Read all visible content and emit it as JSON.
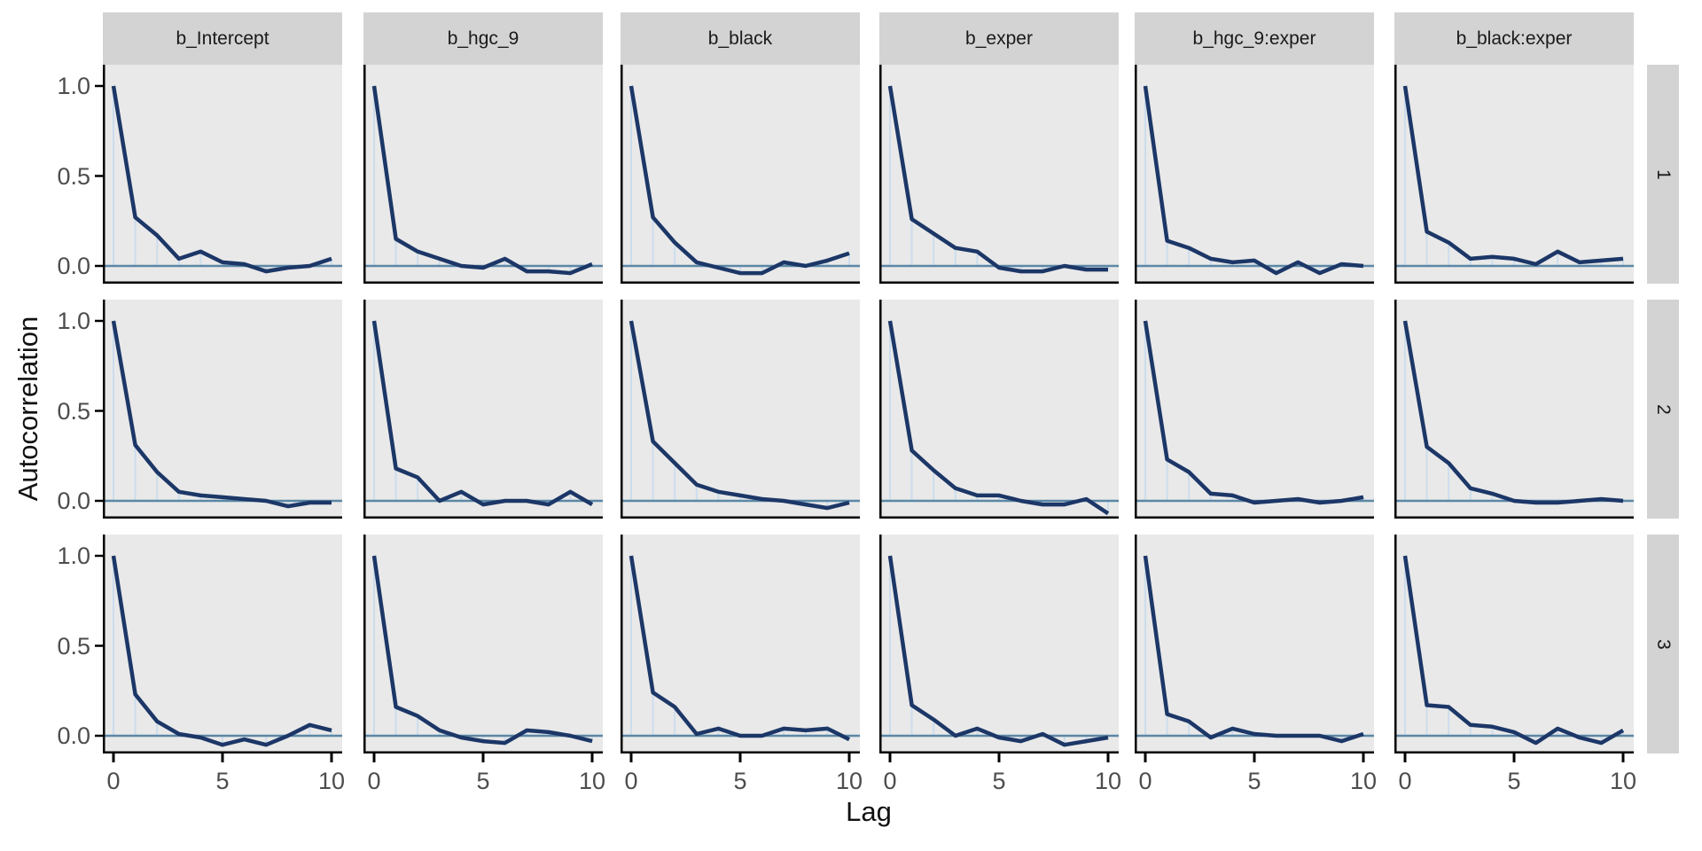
{
  "figure": {
    "x_axis_title": "Lag",
    "y_axis_title": "Autocorrelation",
    "y_tick_labels": [
      "1.0",
      "0.5",
      "0.0"
    ],
    "y_tick_values": [
      1.0,
      0.5,
      0.0
    ],
    "x_tick_labels": [
      "0",
      "5",
      "10"
    ],
    "x_tick_values": [
      0,
      5,
      10
    ],
    "column_strip_labels": [
      "b_Intercept",
      "b_hgc_9",
      "b_black",
      "b_exper",
      "b_hgc_9:exper",
      "b_black:exper"
    ],
    "row_strip_labels": [
      "1",
      "2",
      "3"
    ],
    "colors": {
      "panel_background": "#e9e9e9",
      "strip_background": "#d3d3d3",
      "acf_line": "#1c3767",
      "lag_segment": "#ccdded",
      "zero_line": "#5b87a6",
      "axis_line": "#000000",
      "tick_label": "#4d4d4d",
      "title_text": "#111111"
    }
  },
  "chart_data": {
    "type": "line",
    "title": "",
    "xlabel": "Lag",
    "ylabel": "Autocorrelation",
    "x": [
      0,
      1,
      2,
      3,
      4,
      5,
      6,
      7,
      8,
      9,
      10
    ],
    "xlim": [
      0,
      10
    ],
    "ylim": [
      -0.1,
      1.12
    ],
    "grid": false,
    "legend": false,
    "facet_columns": [
      "b_Intercept",
      "b_hgc_9",
      "b_black",
      "b_exper",
      "b_hgc_9:exper",
      "b_black:exper"
    ],
    "facet_rows": [
      "1",
      "2",
      "3"
    ],
    "series": [
      {
        "parameter": "b_Intercept",
        "chain": "1",
        "values": [
          1.0,
          0.27,
          0.17,
          0.04,
          0.08,
          0.02,
          0.01,
          -0.03,
          -0.01,
          0.0,
          0.04
        ]
      },
      {
        "parameter": "b_hgc_9",
        "chain": "1",
        "values": [
          1.0,
          0.15,
          0.08,
          0.04,
          0.0,
          -0.01,
          0.04,
          -0.03,
          -0.03,
          -0.04,
          0.01
        ]
      },
      {
        "parameter": "b_black",
        "chain": "1",
        "values": [
          1.0,
          0.27,
          0.13,
          0.02,
          -0.01,
          -0.04,
          -0.04,
          0.02,
          0.0,
          0.03,
          0.07
        ]
      },
      {
        "parameter": "b_exper",
        "chain": "1",
        "values": [
          1.0,
          0.26,
          0.18,
          0.1,
          0.08,
          -0.01,
          -0.03,
          -0.03,
          0.0,
          -0.02,
          -0.02
        ]
      },
      {
        "parameter": "b_hgc_9:exper",
        "chain": "1",
        "values": [
          1.0,
          0.14,
          0.1,
          0.04,
          0.02,
          0.03,
          -0.04,
          0.02,
          -0.04,
          0.01,
          0.0
        ]
      },
      {
        "parameter": "b_black:exper",
        "chain": "1",
        "values": [
          1.0,
          0.19,
          0.13,
          0.04,
          0.05,
          0.04,
          0.01,
          0.08,
          0.02,
          0.03,
          0.04
        ]
      },
      {
        "parameter": "b_Intercept",
        "chain": "2",
        "values": [
          1.0,
          0.31,
          0.16,
          0.05,
          0.03,
          0.02,
          0.01,
          0.0,
          -0.03,
          -0.01,
          -0.01
        ]
      },
      {
        "parameter": "b_hgc_9",
        "chain": "2",
        "values": [
          1.0,
          0.18,
          0.13,
          0.0,
          0.05,
          -0.02,
          0.0,
          0.0,
          -0.02,
          0.05,
          -0.02
        ]
      },
      {
        "parameter": "b_black",
        "chain": "2",
        "values": [
          1.0,
          0.33,
          0.21,
          0.09,
          0.05,
          0.03,
          0.01,
          0.0,
          -0.02,
          -0.04,
          -0.01
        ]
      },
      {
        "parameter": "b_exper",
        "chain": "2",
        "values": [
          1.0,
          0.28,
          0.17,
          0.07,
          0.03,
          0.03,
          0.0,
          -0.02,
          -0.02,
          0.01,
          -0.07
        ]
      },
      {
        "parameter": "b_hgc_9:exper",
        "chain": "2",
        "values": [
          1.0,
          0.23,
          0.16,
          0.04,
          0.03,
          -0.01,
          0.0,
          0.01,
          -0.01,
          0.0,
          0.02
        ]
      },
      {
        "parameter": "b_black:exper",
        "chain": "2",
        "values": [
          1.0,
          0.3,
          0.21,
          0.07,
          0.04,
          0.0,
          -0.01,
          -0.01,
          0.0,
          0.01,
          0.0
        ]
      },
      {
        "parameter": "b_Intercept",
        "chain": "3",
        "values": [
          1.0,
          0.23,
          0.08,
          0.01,
          -0.01,
          -0.05,
          -0.02,
          -0.05,
          0.0,
          0.06,
          0.03
        ]
      },
      {
        "parameter": "b_hgc_9",
        "chain": "3",
        "values": [
          1.0,
          0.16,
          0.11,
          0.03,
          -0.01,
          -0.03,
          -0.04,
          0.03,
          0.02,
          0.0,
          -0.03
        ]
      },
      {
        "parameter": "b_black",
        "chain": "3",
        "values": [
          1.0,
          0.24,
          0.16,
          0.01,
          0.04,
          0.0,
          0.0,
          0.04,
          0.03,
          0.04,
          -0.02
        ]
      },
      {
        "parameter": "b_exper",
        "chain": "3",
        "values": [
          1.0,
          0.17,
          0.09,
          0.0,
          0.04,
          -0.01,
          -0.03,
          0.01,
          -0.05,
          -0.03,
          -0.01
        ]
      },
      {
        "parameter": "b_hgc_9:exper",
        "chain": "3",
        "values": [
          1.0,
          0.12,
          0.08,
          -0.01,
          0.04,
          0.01,
          0.0,
          0.0,
          0.0,
          -0.03,
          0.01
        ]
      },
      {
        "parameter": "b_black:exper",
        "chain": "3",
        "values": [
          1.0,
          0.17,
          0.16,
          0.06,
          0.05,
          0.02,
          -0.04,
          0.04,
          -0.01,
          -0.04,
          0.03
        ]
      }
    ]
  }
}
